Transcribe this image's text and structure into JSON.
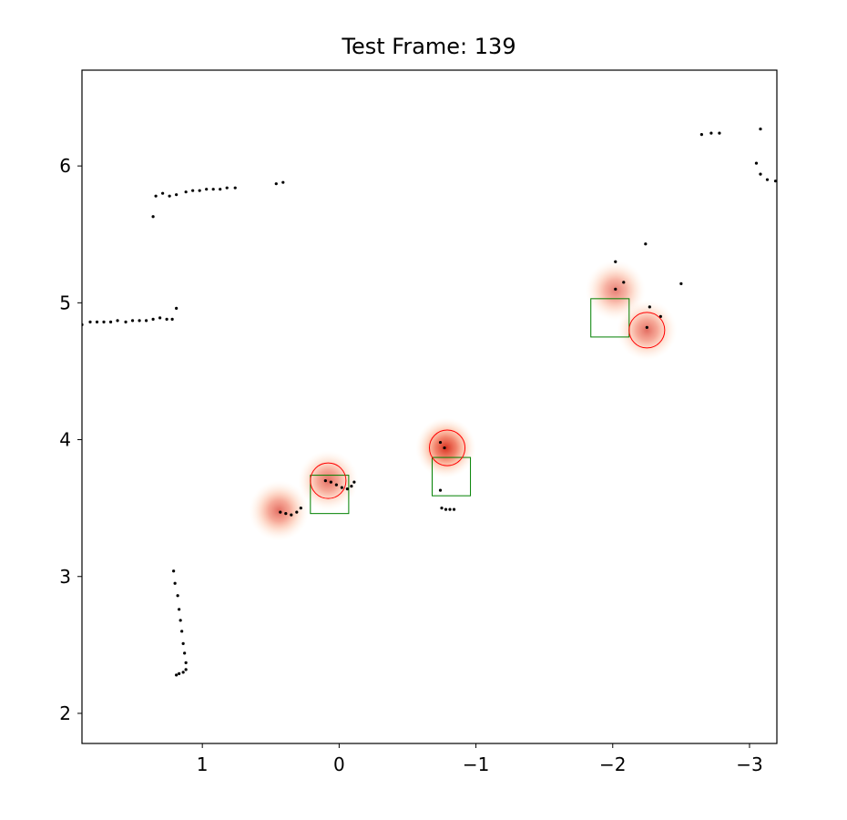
{
  "chart_data": {
    "type": "scatter",
    "title": "Test Frame: 139",
    "xlabel": "",
    "ylabel": "",
    "x_inverted": true,
    "xlim": [
      1.88,
      -3.2
    ],
    "ylim": [
      1.78,
      6.7
    ],
    "xticks": [
      1,
      0,
      -1,
      -2,
      -3
    ],
    "xtick_labels": [
      "1",
      "0",
      "−1",
      "−2",
      "−3"
    ],
    "yticks": [
      2,
      3,
      4,
      5,
      6
    ],
    "ytick_labels": [
      "2",
      "3",
      "4",
      "5",
      "6"
    ],
    "grid": false,
    "colors": {
      "points": "#000000",
      "heat": "#d7301f",
      "detections": "#ff0000",
      "ground_truth": "#008000"
    },
    "scan_points": [
      [
        1.88,
        4.84
      ],
      [
        1.82,
        4.86
      ],
      [
        1.77,
        4.86
      ],
      [
        1.72,
        4.86
      ],
      [
        1.67,
        4.86
      ],
      [
        1.62,
        4.87
      ],
      [
        1.56,
        4.86
      ],
      [
        1.51,
        4.87
      ],
      [
        1.46,
        4.87
      ],
      [
        1.41,
        4.87
      ],
      [
        1.36,
        4.88
      ],
      [
        1.31,
        4.89
      ],
      [
        1.26,
        4.88
      ],
      [
        1.22,
        4.88
      ],
      [
        1.19,
        4.96
      ],
      [
        1.36,
        5.63
      ],
      [
        1.34,
        5.78
      ],
      [
        1.29,
        5.8
      ],
      [
        1.24,
        5.78
      ],
      [
        1.19,
        5.79
      ],
      [
        1.12,
        5.81
      ],
      [
        1.07,
        5.82
      ],
      [
        1.02,
        5.82
      ],
      [
        0.97,
        5.83
      ],
      [
        0.92,
        5.83
      ],
      [
        0.87,
        5.83
      ],
      [
        0.82,
        5.84
      ],
      [
        0.76,
        5.84
      ],
      [
        0.46,
        5.87
      ],
      [
        0.41,
        5.88
      ],
      [
        1.21,
        3.04
      ],
      [
        1.2,
        2.95
      ],
      [
        1.18,
        2.86
      ],
      [
        1.17,
        2.76
      ],
      [
        1.16,
        2.68
      ],
      [
        1.15,
        2.6
      ],
      [
        1.14,
        2.51
      ],
      [
        1.13,
        2.44
      ],
      [
        1.12,
        2.37
      ],
      [
        1.12,
        2.32
      ],
      [
        1.14,
        2.3
      ],
      [
        1.17,
        2.29
      ],
      [
        1.19,
        2.28
      ],
      [
        0.43,
        3.47
      ],
      [
        0.39,
        3.46
      ],
      [
        0.35,
        3.45
      ],
      [
        0.31,
        3.47
      ],
      [
        0.28,
        3.5
      ],
      [
        0.1,
        3.7
      ],
      [
        0.06,
        3.69
      ],
      [
        0.02,
        3.67
      ],
      [
        -0.02,
        3.65
      ],
      [
        -0.06,
        3.64
      ],
      [
        -0.09,
        3.66
      ],
      [
        -0.11,
        3.69
      ],
      [
        -0.74,
        3.98
      ],
      [
        -0.77,
        3.94
      ],
      [
        -0.74,
        3.63
      ],
      [
        -0.75,
        3.5
      ],
      [
        -0.78,
        3.49
      ],
      [
        -0.81,
        3.49
      ],
      [
        -0.84,
        3.49
      ],
      [
        -2.02,
        5.3
      ],
      [
        -2.02,
        5.1
      ],
      [
        -2.08,
        5.15
      ],
      [
        -2.24,
        5.43
      ],
      [
        -2.27,
        4.97
      ],
      [
        -2.35,
        4.9
      ],
      [
        -2.25,
        4.82
      ],
      [
        -2.5,
        5.14
      ],
      [
        -2.65,
        6.23
      ],
      [
        -2.72,
        6.24
      ],
      [
        -2.78,
        6.24
      ],
      [
        -3.08,
        6.27
      ],
      [
        -3.05,
        6.02
      ],
      [
        -3.08,
        5.94
      ],
      [
        -3.13,
        5.9
      ],
      [
        -3.19,
        5.89
      ]
    ],
    "heat_blobs": [
      {
        "x": 0.44,
        "y": 3.48,
        "sigma": 0.085,
        "peak": 0.7
      },
      {
        "x": 0.08,
        "y": 3.7,
        "sigma": 0.085,
        "peak": 0.7
      },
      {
        "x": -0.78,
        "y": 3.94,
        "sigma": 0.085,
        "peak": 1.0
      },
      {
        "x": -2.02,
        "y": 5.09,
        "sigma": 0.085,
        "peak": 0.62
      },
      {
        "x": -2.25,
        "y": 4.8,
        "sigma": 0.085,
        "peak": 0.7
      }
    ],
    "detections": [
      {
        "x": 0.08,
        "y": 3.7,
        "r": 0.13
      },
      {
        "x": -0.79,
        "y": 3.94,
        "r": 0.13
      },
      {
        "x": -2.25,
        "y": 4.8,
        "r": 0.13
      }
    ],
    "ground_truth_boxes": [
      {
        "x0": 0.21,
        "x1": -0.07,
        "y0": 3.46,
        "y1": 3.74
      },
      {
        "x0": -0.68,
        "x1": -0.96,
        "y0": 3.59,
        "y1": 3.87
      },
      {
        "x0": -1.84,
        "x1": -2.12,
        "y0": 4.75,
        "y1": 5.03
      }
    ]
  }
}
